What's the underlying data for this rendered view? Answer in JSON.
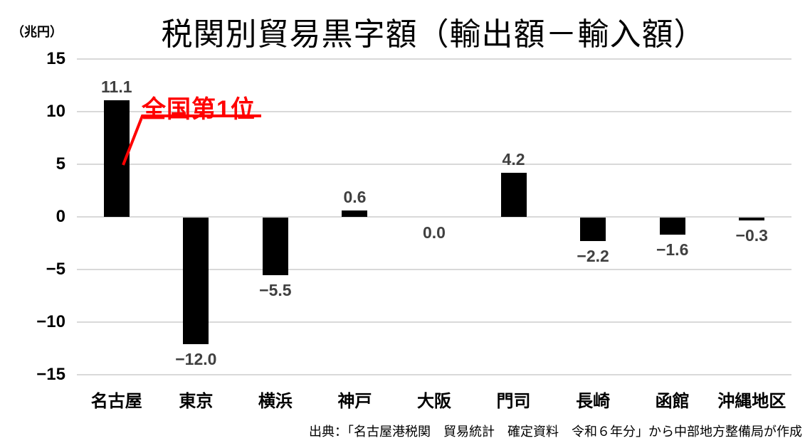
{
  "chart_data": {
    "type": "bar",
    "title": "税関別貿易黒字額（輸出額－輸入額）",
    "unit_label": "（兆円）",
    "categories": [
      "名古屋",
      "東京",
      "横浜",
      "神戸",
      "大阪",
      "門司",
      "長崎",
      "函館",
      "沖縄地区"
    ],
    "values": [
      11.1,
      -12.0,
      -5.5,
      0.6,
      0.0,
      4.2,
      -2.2,
      -1.6,
      -0.3
    ],
    "data_labels": [
      "11.1",
      "−12.0",
      "−5.5",
      "0.6",
      "0.0",
      "4.2",
      "−2.2",
      "−1.6",
      "−0.3"
    ],
    "ylim": [
      -15,
      15
    ],
    "ytick_interval": 5,
    "yticks": [
      {
        "value": 15,
        "label": "15"
      },
      {
        "value": 10,
        "label": "10"
      },
      {
        "value": 5,
        "label": "5"
      },
      {
        "value": 0,
        "label": "0"
      },
      {
        "value": -5,
        "label": "−5"
      },
      {
        "value": -10,
        "label": "−10"
      },
      {
        "value": -15,
        "label": "−15"
      }
    ],
    "grid": true,
    "legend": "none",
    "annotation": {
      "text": "全国第1位",
      "target_category": "名古屋",
      "target_value": 11.1,
      "color": "#ff0000"
    },
    "source": "出典：「名古屋港税関　貿易統計　確定資料　令和６年分」から中部地方整備局が作成",
    "colors": {
      "bar": "#000000",
      "gridline": "#d9d9d9",
      "value_label": "#404040",
      "axis_text": "#000000",
      "annotation": "#ff0000",
      "background": "#ffffff"
    }
  }
}
